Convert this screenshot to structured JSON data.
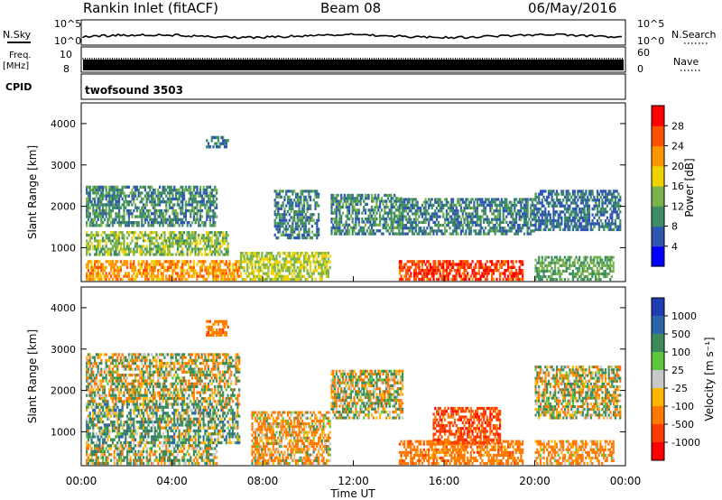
{
  "header": {
    "station": "Rankin Inlet (fitACF)",
    "beam": "Beam 08",
    "date": "06/May/2016"
  },
  "nsky_panel": {
    "left_label": "N.Sky",
    "left_ticks": [
      "10^5",
      "10^0"
    ],
    "right_label": "N.Search",
    "right_ticks": [
      "10^5",
      "10^0"
    ]
  },
  "freq_panel": {
    "left_label_line1": "Freq.",
    "left_label_line2": "[MHz]",
    "left_ticks": [
      "10",
      "8"
    ],
    "right_label": "Nave",
    "right_ticks": [
      "60",
      "0"
    ]
  },
  "cpid_panel": {
    "label": "CPID",
    "text": "twofsound 3503"
  },
  "power_panel": {
    "ylabel": "Slant Range [km]",
    "yticks": [
      "1000",
      "2000",
      "3000",
      "4000"
    ],
    "colorbar_label": "Power [dB]",
    "colorbar_ticks": [
      "4",
      "8",
      "12",
      "16",
      "20",
      "24",
      "28"
    ],
    "colorbar_colors": [
      "#0000ff",
      "#2f56b0",
      "#3c8c64",
      "#78b44b",
      "#f0d200",
      "#ff9600",
      "#ff5000",
      "#ff0000"
    ]
  },
  "velocity_panel": {
    "ylabel": "Slant Range [km]",
    "yticks": [
      "1000",
      "2000",
      "3000",
      "4000"
    ],
    "colorbar_label": "Velocity [m s⁻¹]",
    "colorbar_ticks": [
      "1000",
      "500",
      "100",
      "25",
      "-25",
      "-100",
      "-500",
      "-1000"
    ],
    "colorbar_colors": [
      "#1e3cb4",
      "#2a66a8",
      "#3d8a5a",
      "#5ec83c",
      "#c8c8c8",
      "#ffb400",
      "#ff7800",
      "#ff3c00",
      "#ff0000"
    ]
  },
  "x_axis": {
    "xticks": [
      "00:00",
      "04:00",
      "08:00",
      "12:00",
      "16:00",
      "20:00",
      "00:00"
    ],
    "xlabel": "Time UT"
  },
  "chart_data": {
    "type": "heatmap",
    "title": "Rankin Inlet (fitACF)",
    "subtitle": "Beam 08",
    "date": "06/May/2016",
    "xlabel": "Time UT",
    "ylabel": "Slant Range [km]",
    "x_range_hours": [
      0,
      24
    ],
    "y_range_km": [
      180,
      4500
    ],
    "panels": [
      {
        "name": "Power",
        "colorbar_label": "Power [dB]",
        "color_range": [
          0,
          32
        ],
        "regions": [
          {
            "t0": 0.2,
            "t1": 7.0,
            "r0": 200,
            "r1": 700,
            "value": 22
          },
          {
            "t0": 0.2,
            "t1": 6.5,
            "r0": 800,
            "r1": 1400,
            "value": 14
          },
          {
            "t0": 0.2,
            "t1": 6.0,
            "r0": 1500,
            "r1": 2500,
            "value": 10
          },
          {
            "t0": 5.5,
            "t1": 6.5,
            "r0": 3400,
            "r1": 3700,
            "value": 8
          },
          {
            "t0": 7.0,
            "t1": 11.0,
            "r0": 200,
            "r1": 900,
            "value": 16
          },
          {
            "t0": 8.5,
            "t1": 10.5,
            "r0": 1200,
            "r1": 2400,
            "value": 9
          },
          {
            "t0": 11.0,
            "t1": 14.2,
            "r0": 1300,
            "r1": 2300,
            "value": 10
          },
          {
            "t0": 14.0,
            "t1": 19.5,
            "r0": 200,
            "r1": 700,
            "value": 27
          },
          {
            "t0": 14.0,
            "t1": 20.0,
            "r0": 1300,
            "r1": 2200,
            "value": 9
          },
          {
            "t0": 20.0,
            "t1": 23.8,
            "r0": 1400,
            "r1": 2400,
            "value": 8
          },
          {
            "t0": 20.0,
            "t1": 23.5,
            "r0": 200,
            "r1": 800,
            "value": 12
          }
        ]
      },
      {
        "name": "Velocity",
        "colorbar_label": "Velocity [m s⁻¹]",
        "color_range": [
          -1000,
          1000
        ],
        "regions": [
          {
            "t0": 0.2,
            "t1": 7.0,
            "r0": 700,
            "r1": 1700,
            "value": 120
          },
          {
            "t0": 0.2,
            "t1": 7.0,
            "r0": 1700,
            "r1": 2900,
            "value": 0
          },
          {
            "t0": 0.2,
            "t1": 6.0,
            "r0": 200,
            "r1": 700,
            "value": 60
          },
          {
            "t0": 5.5,
            "t1": 6.5,
            "r0": 3300,
            "r1": 3700,
            "value": -300
          },
          {
            "t0": 7.5,
            "t1": 11.0,
            "r0": 200,
            "r1": 1500,
            "value": -150
          },
          {
            "t0": 11.0,
            "t1": 14.2,
            "r0": 1300,
            "r1": 2500,
            "value": 0
          },
          {
            "t0": 14.0,
            "t1": 19.5,
            "r0": 200,
            "r1": 800,
            "value": -300
          },
          {
            "t0": 15.5,
            "t1": 18.5,
            "r0": 700,
            "r1": 1600,
            "value": -600
          },
          {
            "t0": 20.0,
            "t1": 23.8,
            "r0": 1300,
            "r1": 2600,
            "value": 0
          },
          {
            "t0": 20.0,
            "t1": 23.5,
            "r0": 200,
            "r1": 800,
            "value": -200
          }
        ]
      }
    ],
    "frequency_mhz": 10,
    "cpid": "twofsound 3503"
  }
}
